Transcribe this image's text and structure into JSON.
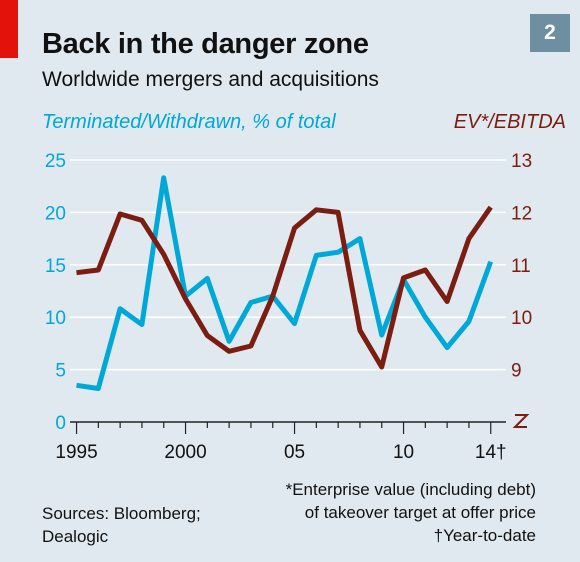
{
  "header": {
    "title": "Back in the danger zone",
    "subtitle": "Worldwide mergers and acquisitions",
    "chart_number": "2"
  },
  "footer": {
    "sources_line1": "Sources: Bloomberg;",
    "sources_line2": "Dealogic",
    "note1_line1": "*Enterprise value (including debt)",
    "note1_line2": "of takeover target at offer price",
    "note2": "†Year-to-date"
  },
  "colors": {
    "background": "#dfe9ef",
    "brand_red": "#e3120b",
    "series_blue": "#00a8d8",
    "series_brown": "#7b1d10",
    "grid": "#ffffff",
    "badge": "#6e8fa1"
  },
  "chart_data": {
    "type": "line",
    "x": [
      1995,
      1996,
      1997,
      1998,
      1999,
      2000,
      2001,
      2002,
      2003,
      2004,
      2005,
      2006,
      2007,
      2008,
      2009,
      2010,
      2011,
      2012,
      2013,
      2014
    ],
    "x_tick_values": [
      1995,
      2000,
      2005,
      2010,
      2014
    ],
    "x_tick_labels": [
      "1995",
      "2000",
      "05",
      "10",
      "14†"
    ],
    "xlim": [
      1994.7,
      2014.7
    ],
    "series": [
      {
        "name": "Terminated/Withdrawn, % of total",
        "axis": "left",
        "color": "#00a8d8",
        "values": [
          3.5,
          3.2,
          10.8,
          9.3,
          23.3,
          12.0,
          13.7,
          7.7,
          11.4,
          12.0,
          9.4,
          15.9,
          16.2,
          17.5,
          8.3,
          13.6,
          10.0,
          7.1,
          9.6,
          15.3
        ]
      },
      {
        "name": "EV*/EBITDA",
        "axis": "right",
        "color": "#7b1d10",
        "values": [
          10.85,
          10.9,
          11.97,
          11.85,
          11.2,
          10.35,
          9.65,
          9.35,
          9.45,
          10.4,
          11.7,
          12.05,
          12.0,
          9.75,
          9.05,
          10.75,
          10.9,
          10.3,
          11.5,
          12.1
        ]
      }
    ],
    "y_left": {
      "ticks": [
        0,
        5,
        10,
        15,
        20,
        25
      ],
      "ylim": [
        0,
        25
      ],
      "color": "#00a8d8"
    },
    "y_right": {
      "ticks": [
        9,
        10,
        11,
        12,
        13
      ],
      "ylim": [
        8,
        13
      ],
      "axis_break": true,
      "color": "#7b1d10"
    },
    "grid": true,
    "legend": "top"
  }
}
